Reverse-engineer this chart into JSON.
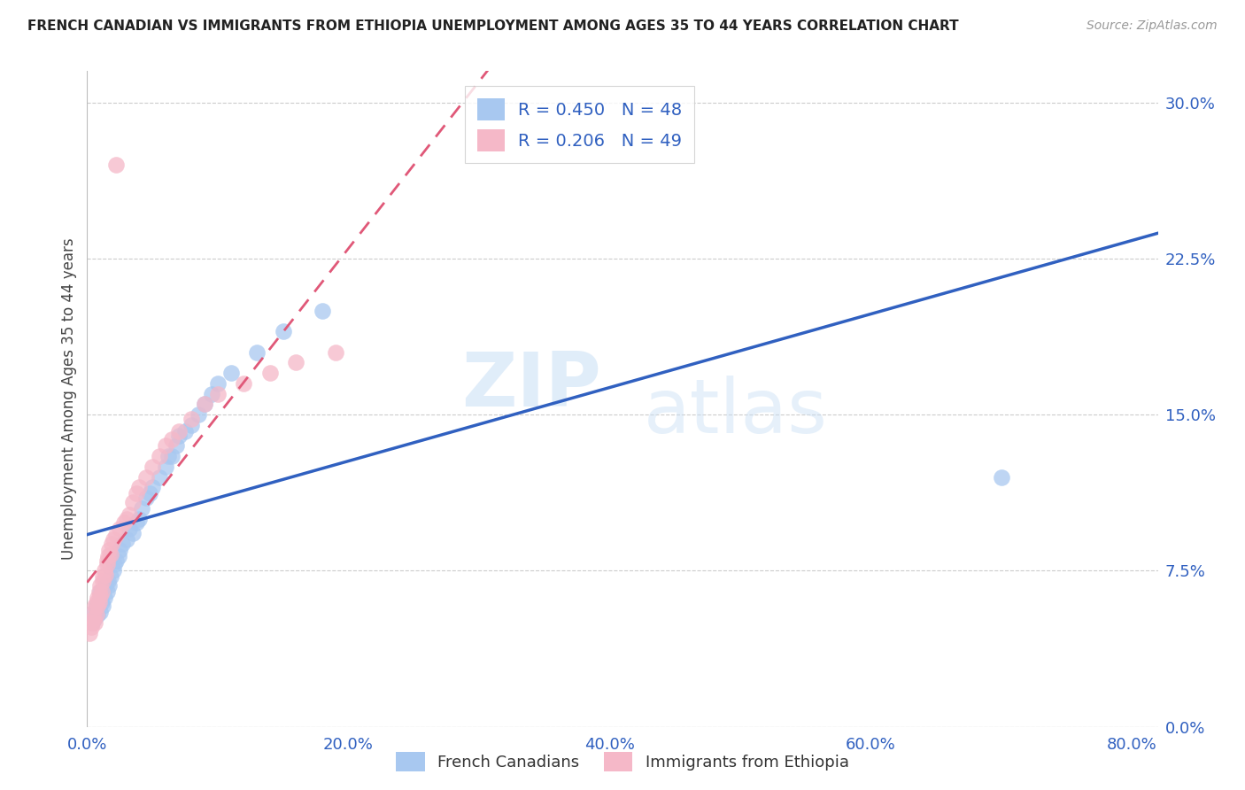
{
  "title": "FRENCH CANADIAN VS IMMIGRANTS FROM ETHIOPIA UNEMPLOYMENT AMONG AGES 35 TO 44 YEARS CORRELATION CHART",
  "source": "Source: ZipAtlas.com",
  "xlabel_ticks": [
    "0.0%",
    "20.0%",
    "40.0%",
    "60.0%",
    "80.0%"
  ],
  "ylabel_ticks": [
    "0.0%",
    "7.5%",
    "15.0%",
    "22.5%",
    "30.0%"
  ],
  "ylabel_label": "Unemployment Among Ages 35 to 44 years",
  "legend_label1": "French Canadians",
  "legend_label2": "Immigrants from Ethiopia",
  "R1": 0.45,
  "N1": 48,
  "R2": 0.206,
  "N2": 49,
  "color_blue": "#A8C8F0",
  "color_pink": "#F5B8C8",
  "line_color_blue": "#3060C0",
  "line_color_pink": "#E05878",
  "watermark_zip": "ZIP",
  "watermark_atlas": "atlas",
  "blue_points_x": [
    0.004,
    0.005,
    0.006,
    0.007,
    0.008,
    0.009,
    0.01,
    0.01,
    0.011,
    0.012,
    0.013,
    0.014,
    0.015,
    0.016,
    0.017,
    0.018,
    0.02,
    0.021,
    0.022,
    0.024,
    0.025,
    0.027,
    0.03,
    0.032,
    0.035,
    0.038,
    0.04,
    0.042,
    0.045,
    0.048,
    0.05,
    0.055,
    0.06,
    0.062,
    0.065,
    0.068,
    0.07,
    0.075,
    0.08,
    0.085,
    0.09,
    0.095,
    0.1,
    0.11,
    0.13,
    0.15,
    0.18,
    0.7
  ],
  "blue_points_y": [
    0.05,
    0.055,
    0.052,
    0.058,
    0.054,
    0.06,
    0.055,
    0.065,
    0.06,
    0.058,
    0.062,
    0.068,
    0.065,
    0.07,
    0.068,
    0.072,
    0.075,
    0.078,
    0.08,
    0.082,
    0.085,
    0.088,
    0.09,
    0.095,
    0.093,
    0.098,
    0.1,
    0.105,
    0.11,
    0.112,
    0.115,
    0.12,
    0.125,
    0.13,
    0.13,
    0.135,
    0.14,
    0.142,
    0.145,
    0.15,
    0.155,
    0.16,
    0.165,
    0.17,
    0.18,
    0.19,
    0.2,
    0.12
  ],
  "pink_points_x": [
    0.002,
    0.003,
    0.004,
    0.005,
    0.005,
    0.006,
    0.006,
    0.007,
    0.007,
    0.008,
    0.008,
    0.009,
    0.009,
    0.01,
    0.01,
    0.011,
    0.012,
    0.012,
    0.013,
    0.014,
    0.015,
    0.015,
    0.016,
    0.017,
    0.018,
    0.019,
    0.02,
    0.022,
    0.025,
    0.028,
    0.03,
    0.032,
    0.035,
    0.038,
    0.04,
    0.045,
    0.05,
    0.055,
    0.06,
    0.065,
    0.07,
    0.08,
    0.09,
    0.1,
    0.12,
    0.14,
    0.16,
    0.19,
    0.022
  ],
  "pink_points_y": [
    0.045,
    0.048,
    0.05,
    0.052,
    0.055,
    0.05,
    0.058,
    0.054,
    0.06,
    0.058,
    0.062,
    0.06,
    0.065,
    0.063,
    0.068,
    0.065,
    0.07,
    0.072,
    0.075,
    0.073,
    0.078,
    0.08,
    0.082,
    0.085,
    0.083,
    0.088,
    0.09,
    0.092,
    0.095,
    0.098,
    0.1,
    0.102,
    0.108,
    0.112,
    0.115,
    0.12,
    0.125,
    0.13,
    0.135,
    0.138,
    0.142,
    0.148,
    0.155,
    0.16,
    0.165,
    0.17,
    0.175,
    0.18,
    0.27
  ],
  "xlim": [
    0.0,
    0.82
  ],
  "ylim": [
    0.0,
    0.315
  ],
  "xtick_vals": [
    0.0,
    0.2,
    0.4,
    0.6,
    0.8
  ],
  "ytick_vals": [
    0.0,
    0.075,
    0.15,
    0.225,
    0.3
  ]
}
